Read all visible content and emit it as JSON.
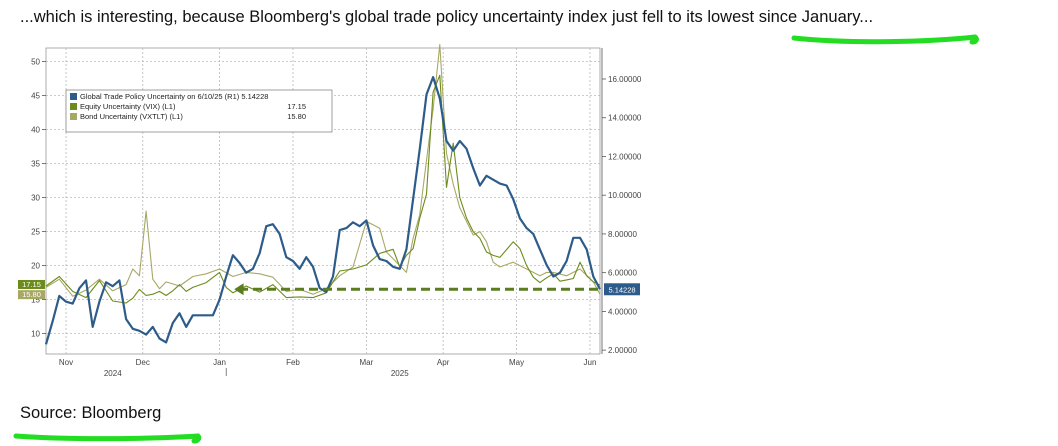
{
  "headline": {
    "before": "...which is interesting, because Bloomberg's global trade policy uncertainty index just fell to its ",
    "highlight": "lowest since January",
    "after": "..."
  },
  "source": "Source: Bloomberg",
  "colors": {
    "trade": "#2e5c8a",
    "equity": "#6b8c1a",
    "bond": "#a8a865",
    "arrow": "#5a7d1f",
    "marker": "#22dd22",
    "grid": "#b8b8b8"
  },
  "chart_data": {
    "type": "line",
    "left_axis": {
      "ylim": [
        7,
        52
      ],
      "ticks": [
        10,
        15,
        20,
        25,
        30,
        35,
        40,
        45,
        50
      ]
    },
    "right_axis": {
      "ylim": [
        1.8,
        17.6
      ],
      "ticks": [
        "2.00000",
        "4.00000",
        "6.00000",
        "8.00000",
        "10.00000",
        "12.00000",
        "14.00000",
        "16.00000"
      ]
    },
    "x_ticks": [
      {
        "label": "Nov",
        "t": 3
      },
      {
        "label": "Dec",
        "t": 14.5
      },
      {
        "label": "Jan",
        "t": 26
      },
      {
        "label": "Feb",
        "t": 37
      },
      {
        "label": "Mar",
        "t": 48
      },
      {
        "label": "Apr",
        "t": 59.5
      },
      {
        "label": "May",
        "t": 70.5
      },
      {
        "label": "Jun",
        "t": 81.5
      }
    ],
    "x_year_labels": [
      {
        "label": "2024",
        "t": 10
      },
      {
        "label": "2025",
        "t": 53
      }
    ],
    "x_range": [
      0,
      83
    ],
    "legend": {
      "title": "Global Trade Policy Uncertainty on 6/10/25 (R1) 5.14228",
      "rows": [
        {
          "label": "Equity Uncertainty (VIX) (L1)",
          "value": "17.15"
        },
        {
          "label": "Bond Uncertainty (VXTLT) (L1)",
          "value": "15.80"
        }
      ]
    },
    "last_value_labels": {
      "equity": "17.15",
      "bond": "15.80",
      "trade": "5.14228"
    },
    "series": [
      {
        "key": "trade",
        "axis": "right",
        "points": [
          [
            0,
            2.3
          ],
          [
            1,
            3.5
          ],
          [
            2,
            4.8
          ],
          [
            3,
            4.5
          ],
          [
            4,
            4.4
          ],
          [
            5,
            5.2
          ],
          [
            6,
            5.6
          ],
          [
            7,
            3.2
          ],
          [
            8,
            4.5
          ],
          [
            9,
            5.5
          ],
          [
            10,
            5.3
          ],
          [
            11,
            5.6
          ],
          [
            12,
            3.6
          ],
          [
            13,
            3.1
          ],
          [
            14,
            3.0
          ],
          [
            15,
            2.8
          ],
          [
            16,
            3.2
          ],
          [
            17,
            2.6
          ],
          [
            18,
            2.4
          ],
          [
            19,
            3.4
          ],
          [
            20,
            3.9
          ],
          [
            21,
            3.2
          ],
          [
            22,
            3.8
          ],
          [
            23,
            3.8
          ],
          [
            24,
            3.8
          ],
          [
            25,
            3.8
          ],
          [
            26,
            4.6
          ],
          [
            27,
            5.8
          ],
          [
            28,
            6.9
          ],
          [
            29,
            6.5
          ],
          [
            30,
            6.0
          ],
          [
            31,
            6.2
          ],
          [
            32,
            7.0
          ],
          [
            33,
            8.4
          ],
          [
            34,
            8.5
          ],
          [
            35,
            8.0
          ],
          [
            36,
            6.8
          ],
          [
            37,
            6.6
          ],
          [
            38,
            6.2
          ],
          [
            39,
            6.8
          ],
          [
            40,
            6.3
          ],
          [
            41,
            5.2
          ],
          [
            42,
            5.0
          ],
          [
            43,
            5.8
          ],
          [
            44,
            8.2
          ],
          [
            45,
            8.3
          ],
          [
            46,
            8.6
          ],
          [
            47,
            8.4
          ],
          [
            48,
            8.7
          ],
          [
            49,
            7.4
          ],
          [
            50,
            6.7
          ],
          [
            51,
            6.6
          ],
          [
            52,
            6.3
          ],
          [
            53,
            6.2
          ],
          [
            54,
            7.2
          ],
          [
            55,
            9.8
          ],
          [
            56,
            12.4
          ],
          [
            57,
            15.2
          ],
          [
            58,
            16.1
          ],
          [
            59,
            15.0
          ],
          [
            60,
            12.8
          ],
          [
            61,
            12.3
          ],
          [
            62,
            12.8
          ],
          [
            63,
            12.4
          ],
          [
            64,
            11.4
          ],
          [
            65,
            10.5
          ],
          [
            66,
            11.0
          ],
          [
            67,
            10.8
          ],
          [
            68,
            10.6
          ],
          [
            69,
            10.5
          ],
          [
            70,
            9.8
          ],
          [
            71,
            8.8
          ],
          [
            72,
            8.3
          ],
          [
            73,
            8.0
          ],
          [
            74,
            7.2
          ],
          [
            75,
            6.4
          ],
          [
            76,
            5.8
          ],
          [
            77,
            6.0
          ],
          [
            78,
            6.6
          ],
          [
            79,
            7.8
          ],
          [
            80,
            7.8
          ],
          [
            81,
            7.2
          ],
          [
            82,
            5.8
          ],
          [
            83,
            5.14228
          ]
        ]
      },
      {
        "key": "equity",
        "axis": "left",
        "points": [
          [
            0,
            17
          ],
          [
            2,
            18.4
          ],
          [
            4,
            16.2
          ],
          [
            6,
            15.3
          ],
          [
            8,
            17.8
          ],
          [
            10,
            14.8
          ],
          [
            12,
            14.5
          ],
          [
            13,
            15.2
          ],
          [
            14,
            16.5
          ],
          [
            15,
            15.6
          ],
          [
            16,
            15.8
          ],
          [
            17,
            16.2
          ],
          [
            18,
            15.6
          ],
          [
            19,
            16.3
          ],
          [
            20,
            17.2
          ],
          [
            21,
            16.2
          ],
          [
            22,
            16.8
          ],
          [
            24,
            17.5
          ],
          [
            26,
            19.0
          ],
          [
            27,
            16.8
          ],
          [
            28,
            16.0
          ],
          [
            30,
            17.0
          ],
          [
            32,
            16.1
          ],
          [
            34,
            17.2
          ],
          [
            36,
            15.3
          ],
          [
            38,
            15.4
          ],
          [
            40,
            15.3
          ],
          [
            42,
            16.0
          ],
          [
            44,
            19.2
          ],
          [
            46,
            19.5
          ],
          [
            48,
            20.1
          ],
          [
            50,
            21.8
          ],
          [
            52,
            22.4
          ],
          [
            53,
            19.8
          ],
          [
            54,
            21.5
          ],
          [
            55,
            22.5
          ],
          [
            56,
            27.0
          ],
          [
            57,
            30.5
          ],
          [
            58,
            45.5
          ],
          [
            59,
            48.0
          ],
          [
            60,
            31.5
          ],
          [
            61,
            38.0
          ],
          [
            62,
            30.0
          ],
          [
            63,
            27.0
          ],
          [
            64,
            25.0
          ],
          [
            65,
            24.0
          ],
          [
            66,
            22.0
          ],
          [
            67,
            21.5
          ],
          [
            68,
            21.2
          ],
          [
            70,
            23.5
          ],
          [
            71,
            22.5
          ],
          [
            72,
            20.0
          ],
          [
            73,
            18.3
          ],
          [
            74,
            17.5
          ],
          [
            75,
            18.2
          ],
          [
            76,
            18.8
          ],
          [
            77,
            17.7
          ],
          [
            78,
            17.9
          ],
          [
            79,
            18.1
          ],
          [
            80,
            20.5
          ],
          [
            81,
            18.5
          ],
          [
            82,
            17.6
          ],
          [
            83,
            17.15
          ]
        ]
      },
      {
        "key": "bond",
        "axis": "left",
        "points": [
          [
            0,
            16.8
          ],
          [
            2,
            18.0
          ],
          [
            4,
            15.5
          ],
          [
            6,
            16.4
          ],
          [
            8,
            18.0
          ],
          [
            10,
            16.3
          ],
          [
            12,
            17.2
          ],
          [
            13,
            19.5
          ],
          [
            14,
            18.5
          ],
          [
            15,
            28.0
          ],
          [
            16,
            18.0
          ],
          [
            17,
            16.6
          ],
          [
            18,
            17.6
          ],
          [
            20,
            17.0
          ],
          [
            22,
            18.4
          ],
          [
            24,
            18.8
          ],
          [
            26,
            19.5
          ],
          [
            28,
            18.4
          ],
          [
            30,
            19.0
          ],
          [
            32,
            18.8
          ],
          [
            34,
            18.3
          ],
          [
            36,
            16.2
          ],
          [
            38,
            16.5
          ],
          [
            40,
            15.8
          ],
          [
            42,
            16.6
          ],
          [
            44,
            18.5
          ],
          [
            46,
            19.8
          ],
          [
            48,
            26.5
          ],
          [
            50,
            25.5
          ],
          [
            51,
            22.0
          ],
          [
            52,
            21.0
          ],
          [
            53,
            20.0
          ],
          [
            54,
            19.0
          ],
          [
            55,
            24.0
          ],
          [
            56,
            27.5
          ],
          [
            57,
            35.5
          ],
          [
            58,
            43.0
          ],
          [
            59,
            52.5
          ],
          [
            60,
            36.5
          ],
          [
            61,
            32.0
          ],
          [
            62,
            28.5
          ],
          [
            63,
            26.5
          ],
          [
            64,
            24.5
          ],
          [
            65,
            25.0
          ],
          [
            66,
            23.5
          ],
          [
            67,
            20.5
          ],
          [
            68,
            19.8
          ],
          [
            70,
            20.5
          ],
          [
            72,
            19.5
          ],
          [
            74,
            18.5
          ],
          [
            75,
            19.0
          ],
          [
            76,
            19.0
          ],
          [
            78,
            18.5
          ],
          [
            80,
            19.5
          ],
          [
            82,
            17.6
          ],
          [
            83,
            15.8
          ]
        ]
      }
    ]
  }
}
